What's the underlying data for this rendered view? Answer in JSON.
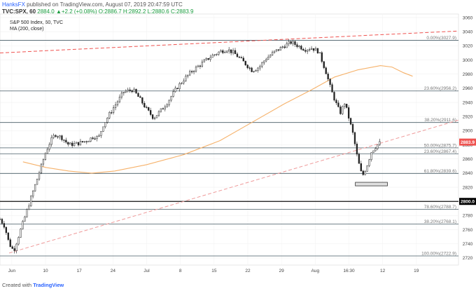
{
  "header": {
    "user": "HanksFX",
    "published_text": "published on TradingView.com, August 07, 2019 20:47:59 UTC",
    "symbol_line": "TVC:SPX, 60",
    "ohlc": "2884.0 ▲+2.2 (+0.08%) O:2886.7 H:2892.2 L:2880.6 C:2883.9"
  },
  "legend": {
    "series_title": "S&P 500 Index, 60, TVC",
    "indicator": "MA (200, close)"
  },
  "footer": {
    "created_with": "Created with",
    "brand": "TradingView"
  },
  "chart_data": {
    "type": "candlestick",
    "title": "S&P 500 Index, 60, TVC",
    "ylim": [
      2710,
      3065
    ],
    "y_ticks": [
      2720,
      2740,
      2760,
      2780,
      2800,
      2820,
      2840,
      2860,
      2880,
      2900,
      2920,
      2940,
      2960,
      2980,
      3000,
      3020,
      3040,
      3060
    ],
    "x_ticks": [
      "Jun",
      "10",
      "17",
      "24",
      "Jul",
      "8",
      "15",
      "22",
      "29",
      "Aug",
      "16:30",
      "12",
      "19"
    ],
    "price_axis_labels": [
      {
        "value": 2883.9,
        "label": "2883.9",
        "color": "#ef5350"
      },
      {
        "value": 2800,
        "label": "2800.0",
        "color": "#000000"
      }
    ],
    "fibonacci_levels": [
      {
        "label": "0.00%(3027.9)",
        "value": 3027.9
      },
      {
        "label": "23.60%(2956.2)",
        "value": 2956.2
      },
      {
        "label": "38.20%(2911.6)",
        "value": 2911.6
      },
      {
        "label": "50.00%(2875.7)",
        "value": 2875.7
      },
      {
        "label": "23.60%(2867.4)",
        "value": 2867.4
      },
      {
        "label": "61.80%(2839.6)",
        "value": 2839.6
      },
      {
        "label": "78.60%(2788.7)",
        "value": 2788.7
      },
      {
        "label": "38.20%(2768.1)",
        "value": 2768.1
      },
      {
        "label": "100.00%(2722.9)",
        "value": 2722.9
      }
    ],
    "support_level": 2800,
    "trendlines": [
      {
        "name": "upper-resistance",
        "start": [
          0,
          3010
        ],
        "end": [
          1,
          3041
        ],
        "style": "dashed",
        "color": "#ef5350"
      },
      {
        "name": "rising-support",
        "start": [
          0.02,
          2727
        ],
        "end": [
          1,
          2915
        ],
        "style": "dashed",
        "color": "#ef9a9a"
      }
    ],
    "support_box": {
      "low": 2822,
      "high": 2827
    },
    "ma200": [
      [
        0.05,
        2856
      ],
      [
        0.1,
        2848
      ],
      [
        0.15,
        2843
      ],
      [
        0.2,
        2840
      ],
      [
        0.25,
        2843
      ],
      [
        0.32,
        2852
      ],
      [
        0.4,
        2866
      ],
      [
        0.48,
        2886
      ],
      [
        0.55,
        2912
      ],
      [
        0.62,
        2938
      ],
      [
        0.68,
        2958
      ],
      [
        0.73,
        2976
      ],
      [
        0.78,
        2986
      ],
      [
        0.83,
        2992
      ],
      [
        0.855,
        2990
      ],
      [
        0.88,
        2982
      ],
      [
        0.9,
        2977
      ]
    ],
    "price_path": [
      [
        0.0,
        2775
      ],
      [
        0.01,
        2765
      ],
      [
        0.02,
        2740
      ],
      [
        0.03,
        2730
      ],
      [
        0.045,
        2760
      ],
      [
        0.06,
        2790
      ],
      [
        0.075,
        2820
      ],
      [
        0.09,
        2850
      ],
      [
        0.1,
        2870
      ],
      [
        0.11,
        2885
      ],
      [
        0.12,
        2895
      ],
      [
        0.135,
        2890
      ],
      [
        0.15,
        2880
      ],
      [
        0.17,
        2882
      ],
      [
        0.19,
        2886
      ],
      [
        0.205,
        2892
      ],
      [
        0.215,
        2890
      ],
      [
        0.225,
        2908
      ],
      [
        0.24,
        2925
      ],
      [
        0.255,
        2940
      ],
      [
        0.27,
        2955
      ],
      [
        0.29,
        2958
      ],
      [
        0.305,
        2945
      ],
      [
        0.32,
        2930
      ],
      [
        0.335,
        2918
      ],
      [
        0.35,
        2928
      ],
      [
        0.365,
        2940
      ],
      [
        0.375,
        2950
      ],
      [
        0.385,
        2960
      ],
      [
        0.4,
        2972
      ],
      [
        0.42,
        2985
      ],
      [
        0.44,
        2995
      ],
      [
        0.46,
        3005
      ],
      [
        0.48,
        3012
      ],
      [
        0.495,
        3015
      ],
      [
        0.51,
        3010
      ],
      [
        0.53,
        2998
      ],
      [
        0.55,
        2985
      ],
      [
        0.565,
        2990
      ],
      [
        0.58,
        3002
      ],
      [
        0.6,
        3012
      ],
      [
        0.62,
        3020
      ],
      [
        0.635,
        3025
      ],
      [
        0.65,
        3020
      ],
      [
        0.665,
        3015
      ],
      [
        0.68,
        3017
      ],
      [
        0.695,
        3012
      ],
      [
        0.71,
        2985
      ],
      [
        0.722,
        2958
      ],
      [
        0.732,
        2940
      ],
      [
        0.742,
        2925
      ],
      [
        0.752,
        2940
      ],
      [
        0.77,
        2895
      ],
      [
        0.78,
        2860
      ],
      [
        0.79,
        2835
      ],
      [
        0.8,
        2850
      ],
      [
        0.81,
        2870
      ],
      [
        0.82,
        2878
      ],
      [
        0.83,
        2883.9
      ]
    ]
  }
}
